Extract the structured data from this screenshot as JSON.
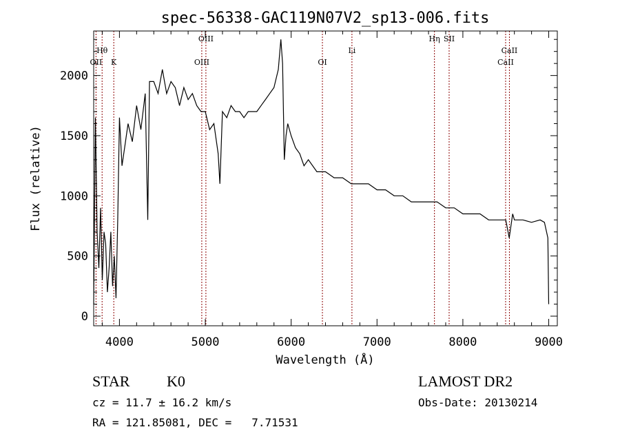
{
  "chart_data": {
    "type": "line",
    "title": "spec-56338-GAC119N07V2_sp13-006.fits",
    "xlabel": "Wavelength (Å)",
    "ylabel": "Flux (relative)",
    "xlim": [
      3700,
      9100
    ],
    "ylim": [
      -80,
      2370
    ],
    "xticks": [
      4000,
      5000,
      6000,
      7000,
      8000,
      9000
    ],
    "yticks": [
      0,
      500,
      1000,
      1500,
      2000
    ],
    "series": [
      {
        "x": [
          3700,
          3720,
          3740,
          3760,
          3780,
          3800,
          3820,
          3840,
          3860,
          3880,
          3900,
          3920,
          3940,
          3960,
          3980,
          4000,
          4030,
          4060,
          4100,
          4150,
          4200,
          4250,
          4300,
          4330,
          4350,
          4400,
          4450,
          4500,
          4550,
          4600,
          4650,
          4700,
          4750,
          4800,
          4850,
          4900,
          4950,
          5000,
          5050,
          5100,
          5150,
          5170,
          5200,
          5250,
          5300,
          5350,
          5400,
          5450,
          5500,
          5550,
          5600,
          5650,
          5700,
          5750,
          5800,
          5850,
          5880,
          5900,
          5920,
          5940,
          5960,
          6000,
          6050,
          6100,
          6150,
          6200,
          6300,
          6400,
          6500,
          6600,
          6700,
          6800,
          6900,
          7000,
          7100,
          7200,
          7300,
          7400,
          7500,
          7600,
          7700,
          7800,
          7900,
          8000,
          8100,
          8200,
          8300,
          8400,
          8500,
          8540,
          8580,
          8600,
          8700,
          8800,
          8900,
          8950,
          8990,
          9000
        ],
        "y": [
          100,
          1650,
          700,
          400,
          900,
          300,
          700,
          600,
          200,
          400,
          700,
          250,
          500,
          150,
          800,
          1650,
          1250,
          1400,
          1600,
          1450,
          1750,
          1550,
          1850,
          800,
          1950,
          1950,
          1850,
          2050,
          1850,
          1950,
          1900,
          1750,
          1900,
          1800,
          1850,
          1750,
          1700,
          1700,
          1550,
          1600,
          1350,
          1100,
          1700,
          1650,
          1750,
          1700,
          1700,
          1650,
          1700,
          1700,
          1700,
          1750,
          1800,
          1850,
          1900,
          2050,
          2300,
          2100,
          1300,
          1500,
          1600,
          1500,
          1400,
          1350,
          1250,
          1300,
          1200,
          1200,
          1150,
          1150,
          1100,
          1100,
          1100,
          1050,
          1050,
          1000,
          1000,
          950,
          950,
          950,
          950,
          900,
          900,
          850,
          850,
          850,
          800,
          800,
          800,
          650,
          850,
          800,
          800,
          780,
          800,
          780,
          650,
          100
        ]
      }
    ],
    "lines": [
      {
        "label": "OII",
        "x": 3727,
        "row": 2
      },
      {
        "label": "Hθ",
        "x": 3798,
        "row": 1
      },
      {
        "label": "K",
        "x": 3934,
        "row": 2
      },
      {
        "label": "OIII",
        "x": 4959,
        "row": 2
      },
      {
        "label": "OIII",
        "x": 5007,
        "row": 0
      },
      {
        "label": "OI",
        "x": 6364,
        "row": 2
      },
      {
        "label": "Li",
        "x": 6708,
        "row": 1
      },
      {
        "label": "Hη",
        "x": 7669,
        "row": 0
      },
      {
        "label": "SII",
        "x": 7840,
        "row": 0
      },
      {
        "label": "CaII",
        "x": 8498,
        "row": 2
      },
      {
        "label": "CaII",
        "x": 8542,
        "row": 1
      }
    ],
    "grid": false,
    "line_color": "#000000",
    "marker_color": "#8b0000"
  },
  "info": {
    "class_label": "STAR",
    "subclass": "K0",
    "survey": "LAMOST DR2",
    "cz": "cz = 11.7 ± 16.2 km/s",
    "obs_date": "Obs-Date: 20130214",
    "coords": "RA = 121.85081, DEC =   7.71531"
  }
}
